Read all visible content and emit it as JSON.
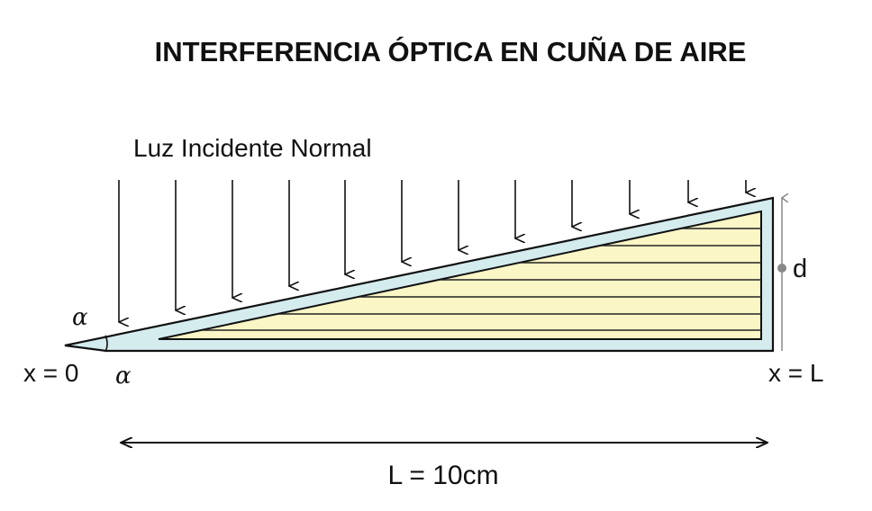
{
  "title": "INTERFERENCIA ÓPTICA EN CUÑA DE AIRE",
  "light_label": "Luz Incidente Normal",
  "angle_symbol": "α",
  "thickness_label": "d",
  "x_start_label": "x = 0",
  "x_end_label": "x = L",
  "length_label": "L = 10cm",
  "colors": {
    "glass": "#d4ecee",
    "air_wedge": "#fbf6c6",
    "outline": "#111111",
    "dimension": "#888888"
  }
}
